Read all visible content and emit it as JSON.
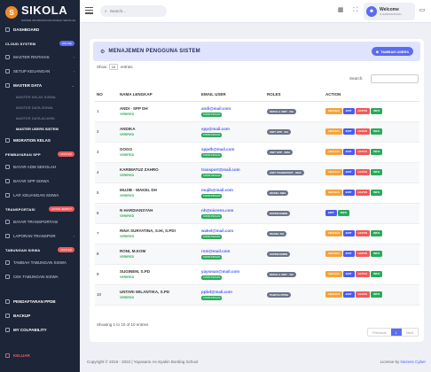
{
  "brand": {
    "name": "SIKOLA",
    "tagline": "SISTEM INFORMASI KEUANGAN SEKOLAH"
  },
  "sidebar": {
    "dashboard": "DASHBOARD",
    "section_cloud": "CLOUD SYSTEM",
    "badge_cloud": "ONLINE",
    "master_rintahis": "MASTER RINTAHIS",
    "setup_keuangan": "SETUP KEUANGAN",
    "master_data": "MASTER DATA",
    "sub_kelas": "MASTER KELAS SISWA",
    "sub_siswa": "MASTER DATA SISWA",
    "sub_alumni": "MASTER DATA ALUMNI",
    "sub_users": "MASTER USERS SISTEM",
    "migrasi": "MIGRATION KELAS",
    "section_spp": "PEMBAYARAN SPP",
    "badge_spp": "MASTER",
    "bayar_adm": "BAYAR ADM SEKOLAH",
    "bayar_spp": "BAYAR SPP SISWA",
    "lap_keuangan": "LAP. KEUANGAN SISWA",
    "section_transport": "TRANSPORTASI",
    "badge_transport": "ANTAR JEMPUT",
    "bayar_transport": "BAYAR TRANSPORTASI",
    "lap_transport": "LAPORAN TRANSPOR",
    "section_tabungan": "TABUNGAN SISWA",
    "badge_tabungan": "MASTER",
    "tambah_tabungan": "TAMBAH TABUNGAN SISWA",
    "cek_tabungan": "CEK TABUNGAN SISWA",
    "ppdb": "PENDAFTARAN PPDB",
    "backup": "BACKUP",
    "colpability": "MY COLPABILITY",
    "keluar": "KELUAR"
  },
  "topbar": {
    "search_placeholder": "Search...",
    "welcome": "Welcome",
    "user_role": "N HARDIANSYAH"
  },
  "card": {
    "title": "MENAJEMEN PENGGUNA SISTEM",
    "add_button": "TAMBAH USERS",
    "show_label": "Show",
    "show_value": "10",
    "entries_label": "entries",
    "search_label": "Search:"
  },
  "table": {
    "headers": [
      "NO",
      "NAMA LENGKAP",
      "EMAIL USER",
      "ROLES",
      "ACTION"
    ],
    "verified_label": "VERIFIED",
    "kirim_label": "KIRIM PESAN",
    "rows": [
      {
        "no": "1",
        "name": "ANDI - SPP DH",
        "email": "andi@mail.com",
        "role": "KEPALA UNIT - DH"
      },
      {
        "no": "2",
        "name": "ANDIKA",
        "email": "spp@mail.com",
        "role": "UNIT SPP - DH"
      },
      {
        "no": "3",
        "name": "GOGO",
        "email": "sppdh@mail.com",
        "role": "UNIT SPP - SMA"
      },
      {
        "no": "4",
        "name": "KARIMATUZ ZAHRO",
        "email": "transport@mail.com",
        "role": "UNIT TRANSPORT - SMA"
      },
      {
        "no": "5",
        "name": "MUJIB - WAKEL DH",
        "email": "mujib@mail.com",
        "role": "WAKEL SMA"
      },
      {
        "no": "6",
        "name": "N HARDIANSYAH",
        "email": "nh@nicrens.com",
        "role": "SUPERADMIN"
      },
      {
        "no": "7",
        "name": "RINA SURYATINA, S.HI, S.PDI",
        "email": "wakel@mail.com",
        "role": "WAKEL DH"
      },
      {
        "no": "8",
        "name": "RONI, M.KOM",
        "email": "roni@mail.com",
        "role": "SUPERADMIN"
      },
      {
        "no": "9",
        "name": "SUGINEM, S.PD",
        "email": "yaysman@mail.com",
        "role": "KEPALA UNIT - SD"
      },
      {
        "no": "10",
        "name": "UNTARI WILANTIKA, S.PD",
        "email": "ppbd@mail.com",
        "role": "PANITIA PPDB"
      }
    ],
    "actions": {
      "ubah": "UBAHLD",
      "edit": "EDIT",
      "hapus": "HAPUS",
      "info": "INFO"
    },
    "showing": "Showing 1 to 10 of 10 entries"
  },
  "pager": {
    "prev": "Previous",
    "current": "1",
    "next": "Next"
  },
  "footer": {
    "copyright": "Copyright © 2019 - 2022 | Yayasann As-Syakin Bording School",
    "license_prefix": "License by",
    "license_name": "Nicrens Cyber"
  },
  "colors": {
    "accent": "#5b6cf0",
    "sidebar": "#1d2538",
    "success": "#2aaa5a",
    "danger": "#ef5a5a",
    "warning": "#f3a33b"
  }
}
